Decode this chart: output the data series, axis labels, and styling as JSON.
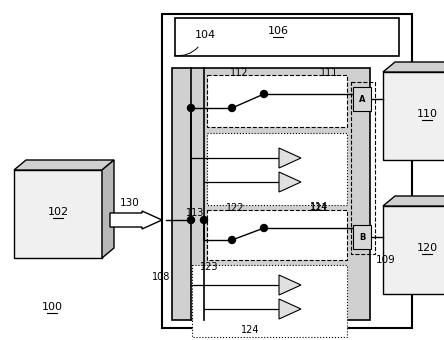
{
  "bg_color": "#ffffff",
  "gray_inner": "#d0d0d0",
  "white": "#ffffff",
  "black": "#000000"
}
